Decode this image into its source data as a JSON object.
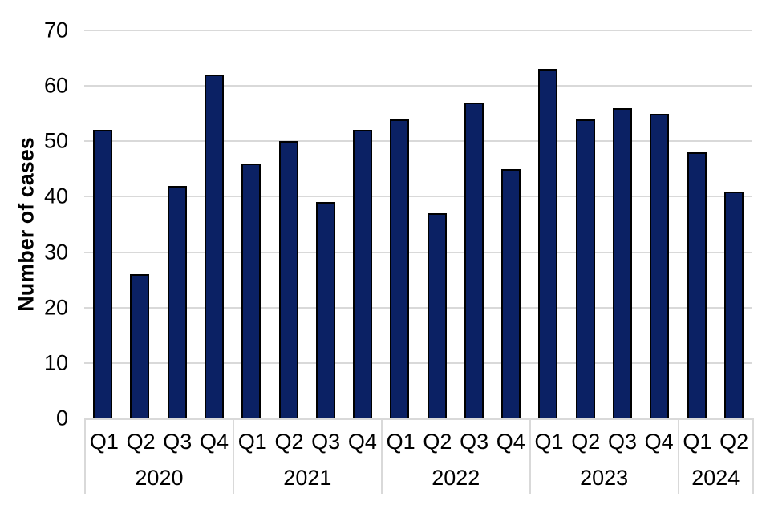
{
  "chart_data": {
    "type": "bar",
    "title": "",
    "xlabel": "",
    "ylabel": "Number of cases",
    "ylim": [
      0,
      70
    ],
    "yticks": [
      0,
      10,
      20,
      30,
      40,
      50,
      60,
      70
    ],
    "grid": "horizontal-only",
    "legend": "none",
    "bar_color": "#0b2164",
    "bar_border_color": "#000000",
    "gridline_color": "#d9d9d9",
    "axis_box_color": "#d9d9d9",
    "text_color": "#000000",
    "categories": [
      "2020 Q1",
      "2020 Q2",
      "2020 Q3",
      "2020 Q4",
      "2021 Q1",
      "2021 Q2",
      "2021 Q3",
      "2021 Q4",
      "2022 Q1",
      "2022 Q2",
      "2022 Q3",
      "2022 Q4",
      "2023 Q1",
      "2023 Q2",
      "2023 Q3",
      "2023 Q4",
      "2024 Q1",
      "2024 Q2"
    ],
    "values": [
      52,
      26,
      42,
      62,
      46,
      50,
      39,
      52,
      54,
      37,
      57,
      45,
      63,
      54,
      56,
      55,
      48,
      41
    ],
    "groups": [
      {
        "year": "2020",
        "quarters": [
          "Q1",
          "Q2",
          "Q3",
          "Q4"
        ],
        "values": [
          52,
          26,
          42,
          62
        ]
      },
      {
        "year": "2021",
        "quarters": [
          "Q1",
          "Q2",
          "Q3",
          "Q4"
        ],
        "values": [
          46,
          50,
          39,
          52
        ]
      },
      {
        "year": "2022",
        "quarters": [
          "Q1",
          "Q2",
          "Q3",
          "Q4"
        ],
        "values": [
          54,
          37,
          57,
          45
        ]
      },
      {
        "year": "2023",
        "quarters": [
          "Q1",
          "Q2",
          "Q3",
          "Q4"
        ],
        "values": [
          63,
          54,
          56,
          55
        ]
      },
      {
        "year": "2024",
        "quarters": [
          "Q1",
          "Q2"
        ],
        "values": [
          48,
          41
        ]
      }
    ]
  }
}
